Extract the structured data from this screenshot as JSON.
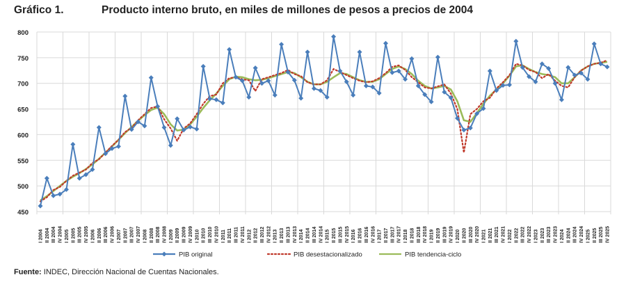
{
  "chart_data": {
    "type": "line",
    "figure_label": "Gráfico 1.",
    "title": "Producto interno bruto, en miles de millones de pesos a precios de 2004",
    "xlabel": "",
    "ylabel": "",
    "ylim": [
      450,
      800
    ],
    "yticks": [
      450,
      500,
      550,
      600,
      650,
      700,
      750,
      800
    ],
    "grid": true,
    "legend_position": "bottom",
    "years": [
      2004,
      2005,
      2006,
      2007,
      2008,
      2009,
      2010,
      2011,
      2012,
      2013,
      2014,
      2015,
      2016,
      2017,
      2018,
      2019,
      2020,
      2021,
      2022,
      2023,
      2024,
      2025
    ],
    "quarters": [
      "I",
      "II",
      "III",
      "IV"
    ],
    "series": [
      {
        "name": "PIB original",
        "color": "#4a7ebb",
        "style": "line-diamond",
        "values": [
          461,
          515,
          481,
          484,
          493,
          581,
          515,
          522,
          532,
          614,
          563,
          573,
          577,
          675,
          610,
          625,
          617,
          711,
          655,
          614,
          579,
          631,
          609,
          615,
          611,
          733,
          670,
          668,
          662,
          766,
          712,
          705,
          673,
          730,
          700,
          705,
          677,
          776,
          722,
          706,
          671,
          761,
          690,
          686,
          673,
          791,
          724,
          703,
          677,
          761,
          695,
          693,
          681,
          778,
          721,
          724,
          708,
          748,
          695,
          678,
          664,
          751,
          683,
          672,
          632,
          609,
          613,
          641,
          651,
          724,
          686,
          696,
          697,
          782,
          731,
          713,
          703,
          738,
          729,
          700,
          668,
          731,
          716,
          720,
          708,
          777,
          738,
          732
        ]
      },
      {
        "name": "PIB desestacionalizado",
        "color": "#c0392b",
        "style": "dotted",
        "values": [
          470,
          478,
          492,
          498,
          510,
          520,
          526,
          532,
          545,
          552,
          565,
          578,
          590,
          605,
          613,
          628,
          640,
          652,
          655,
          630,
          612,
          588,
          612,
          622,
          640,
          660,
          675,
          678,
          700,
          710,
          712,
          708,
          706,
          685,
          708,
          712,
          716,
          720,
          726,
          718,
          714,
          702,
          698,
          698,
          706,
          728,
          722,
          716,
          710,
          705,
          702,
          704,
          710,
          720,
          732,
          735,
          726,
          712,
          702,
          692,
          690,
          694,
          698,
          680,
          650,
          565,
          640,
          650,
          665,
          672,
          690,
          702,
          716,
          738,
          735,
          726,
          722,
          710,
          718,
          705,
          695,
          692,
          712,
          725,
          733,
          738,
          740,
          745
        ]
      },
      {
        "name": "PIB tendencia-ciclo",
        "color": "#9bbb59",
        "style": "line",
        "values": [
          472,
          480,
          490,
          500,
          510,
          518,
          525,
          533,
          542,
          553,
          565,
          577,
          590,
          603,
          615,
          627,
          638,
          648,
          653,
          640,
          620,
          608,
          610,
          620,
          635,
          652,
          667,
          680,
          695,
          708,
          713,
          712,
          708,
          706,
          707,
          710,
          714,
          718,
          722,
          720,
          712,
          703,
          698,
          698,
          703,
          712,
          720,
          718,
          712,
          706,
          703,
          703,
          708,
          718,
          728,
          733,
          728,
          718,
          705,
          695,
          690,
          692,
          695,
          688,
          665,
          628,
          625,
          642,
          660,
          676,
          688,
          700,
          715,
          733,
          735,
          728,
          722,
          718,
          716,
          712,
          700,
          700,
          712,
          725,
          733,
          738,
          740,
          742
        ]
      }
    ]
  },
  "source": {
    "label": "Fuente:",
    "text": " INDEC, Dirección Nacional de Cuentas Nacionales."
  }
}
